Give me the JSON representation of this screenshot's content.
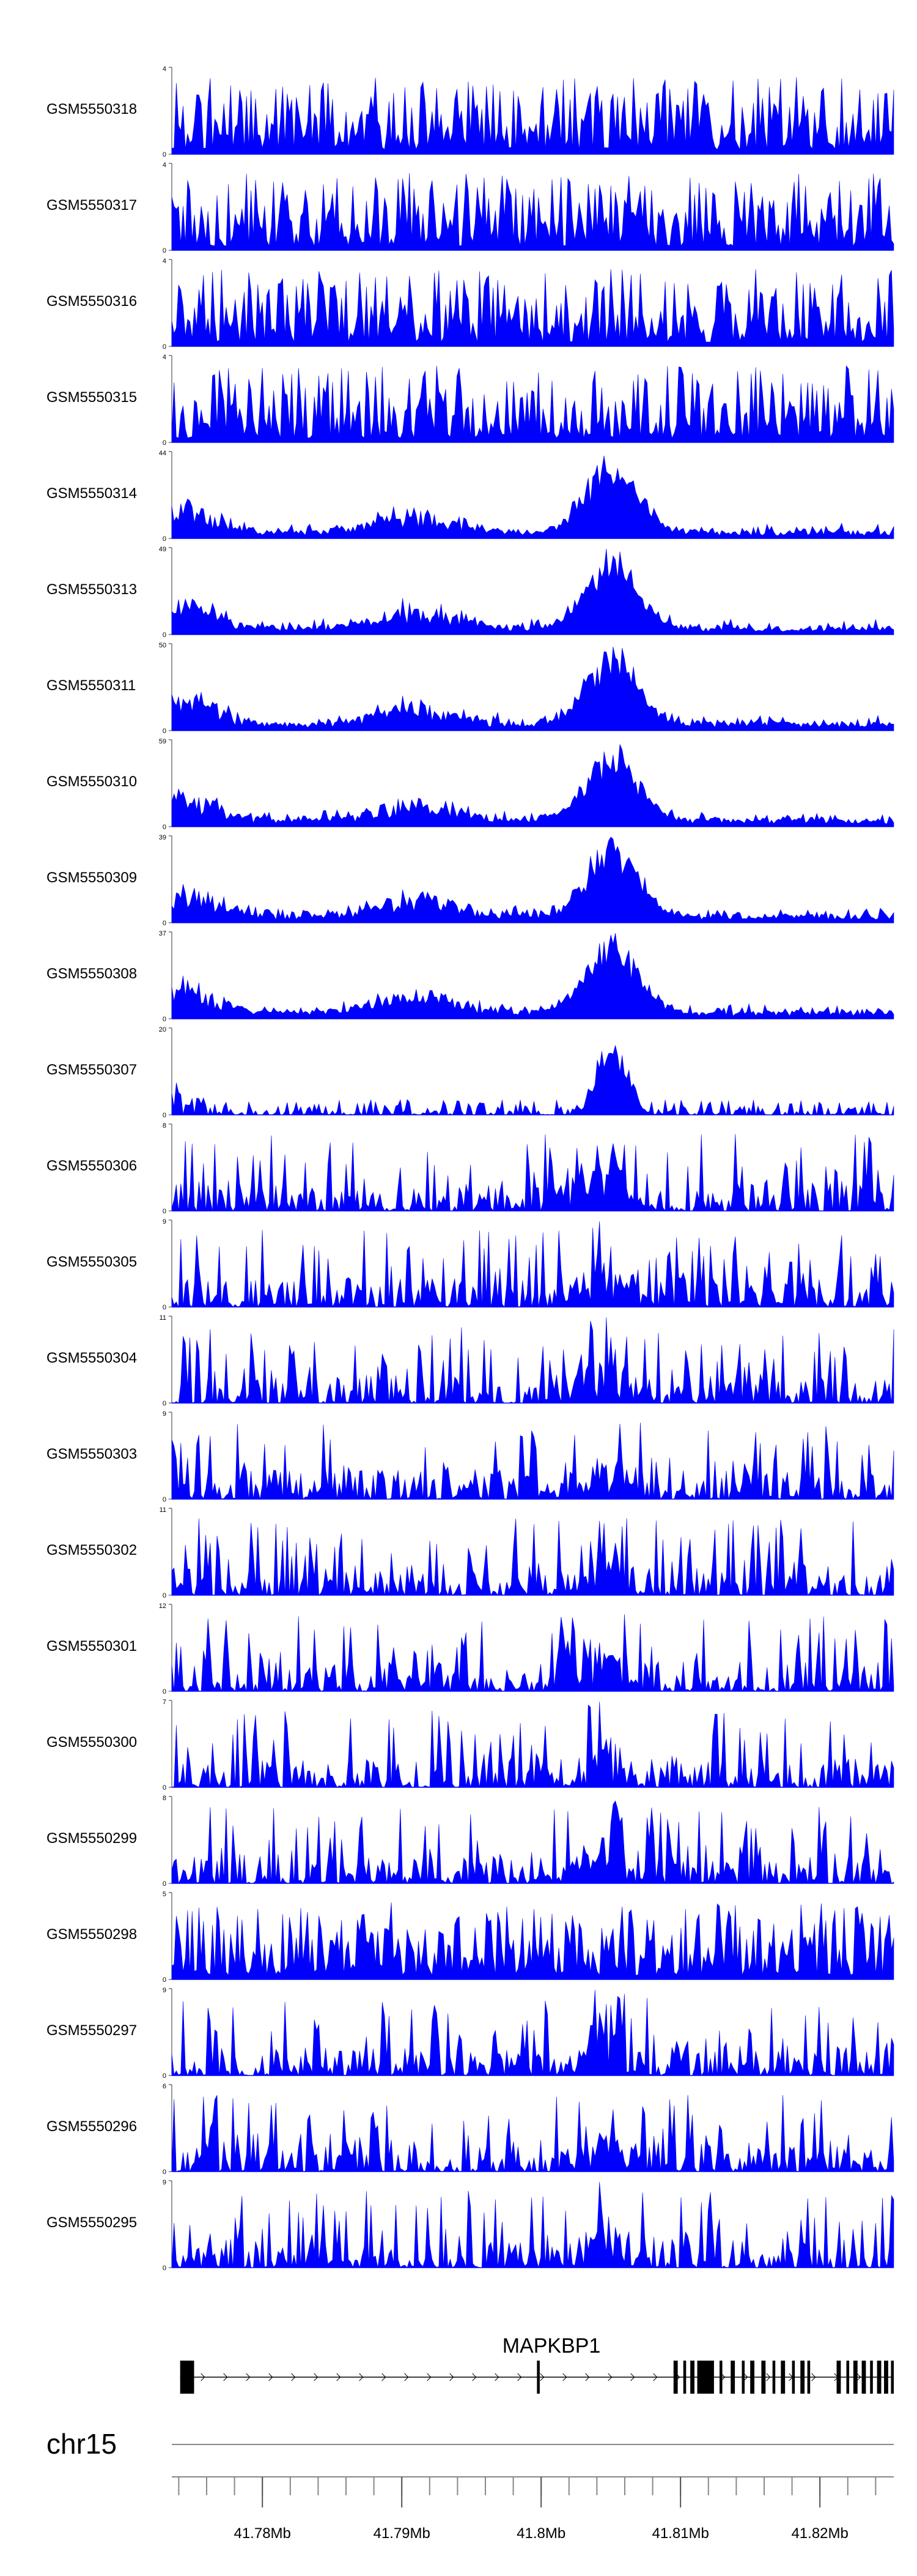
{
  "chart_data": {
    "type": "area",
    "fill_color": "#0000ff",
    "x_axis": {
      "chromosome": "chr15",
      "ticks": [
        41.78,
        41.79,
        41.8,
        41.81,
        41.82
      ],
      "tick_labels": [
        "41.78Mb",
        "41.79Mb",
        "41.8Mb",
        "41.81Mb",
        "41.82Mb"
      ],
      "xlim": [
        41.7735,
        41.8253
      ],
      "minor_tick_step": 0.002
    },
    "gene": {
      "name": "MAPKBP1",
      "strand": "+",
      "start": 41.7741,
      "end": 41.8253,
      "exons": [
        [
          41.7741,
          41.7751
        ],
        [
          41.7997,
          41.7999
        ],
        [
          41.8095,
          41.8098
        ],
        [
          41.8102,
          41.8104
        ],
        [
          41.8107,
          41.811
        ],
        [
          41.8112,
          41.8124
        ],
        [
          41.8128,
          41.813
        ],
        [
          41.8136,
          41.8139
        ],
        [
          41.8144,
          41.8146
        ],
        [
          41.815,
          41.8153
        ],
        [
          41.8158,
          41.8161
        ],
        [
          41.8166,
          41.8168
        ],
        [
          41.8172,
          41.8175
        ],
        [
          41.818,
          41.8182
        ],
        [
          41.8186,
          41.8189
        ],
        [
          41.8191,
          41.8193
        ],
        [
          41.8212,
          41.8215
        ],
        [
          41.8219,
          41.8221
        ],
        [
          41.8224,
          41.8227
        ],
        [
          41.823,
          41.8233
        ],
        [
          41.8236,
          41.8238
        ],
        [
          41.8241,
          41.8244
        ],
        [
          41.8246,
          41.8249
        ],
        [
          41.8251,
          41.8253
        ]
      ]
    },
    "series": [
      {
        "name": "GSM5550318",
        "ymax": 4,
        "profile": "uniform",
        "seed": 18
      },
      {
        "name": "GSM5550317",
        "ymax": 4,
        "profile": "uniform",
        "seed": 17
      },
      {
        "name": "GSM5550316",
        "ymax": 4,
        "profile": "uniform",
        "seed": 16
      },
      {
        "name": "GSM5550315",
        "ymax": 4,
        "profile": "uniform",
        "seed": 15
      },
      {
        "name": "GSM5550314",
        "ymax": 44,
        "profile": "peak",
        "seed": 14
      },
      {
        "name": "GSM5550313",
        "ymax": 49,
        "profile": "peak",
        "seed": 13
      },
      {
        "name": "GSM5550311",
        "ymax": 50,
        "profile": "peak",
        "seed": 11
      },
      {
        "name": "GSM5550310",
        "ymax": 59,
        "profile": "peak",
        "seed": 10
      },
      {
        "name": "GSM5550309",
        "ymax": 39,
        "profile": "peak",
        "seed": 9
      },
      {
        "name": "GSM5550308",
        "ymax": 37,
        "profile": "peak",
        "seed": 8
      },
      {
        "name": "GSM5550307",
        "ymax": 20,
        "profile": "peak-sparse",
        "seed": 7
      },
      {
        "name": "GSM5550306",
        "ymax": 8,
        "profile": "spiky",
        "seed": 6
      },
      {
        "name": "GSM5550305",
        "ymax": 9,
        "profile": "spiky",
        "seed": 5
      },
      {
        "name": "GSM5550304",
        "ymax": 11,
        "profile": "spiky",
        "seed": 4
      },
      {
        "name": "GSM5550303",
        "ymax": 9,
        "profile": "spiky",
        "seed": 3
      },
      {
        "name": "GSM5550302",
        "ymax": 11,
        "profile": "spiky",
        "seed": 2
      },
      {
        "name": "GSM5550301",
        "ymax": 12,
        "profile": "spiky",
        "seed": 1
      },
      {
        "name": "GSM5550300",
        "ymax": 7,
        "profile": "spiky",
        "seed": 30
      },
      {
        "name": "GSM5550299",
        "ymax": 8,
        "profile": "spiky",
        "seed": 29
      },
      {
        "name": "GSM5550298",
        "ymax": 5,
        "profile": "uniform",
        "seed": 28
      },
      {
        "name": "GSM5550297",
        "ymax": 9,
        "profile": "spiky",
        "seed": 27
      },
      {
        "name": "GSM5550296",
        "ymax": 6,
        "profile": "spiky",
        "seed": 26
      },
      {
        "name": "GSM5550295",
        "ymax": 9,
        "profile": "spiky",
        "seed": 25
      }
    ]
  }
}
